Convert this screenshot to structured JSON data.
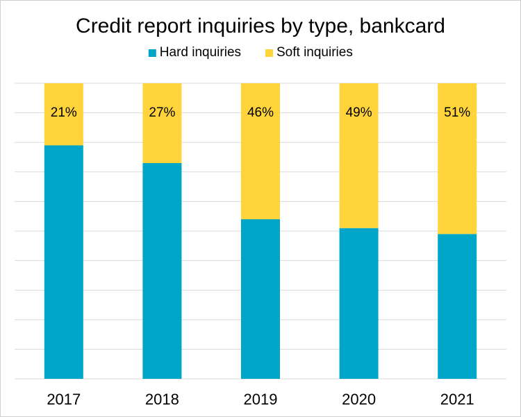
{
  "chart_data": {
    "type": "bar",
    "stacked": true,
    "title": "Credit report inquiries by type, bankcard",
    "xlabel": "",
    "ylabel": "",
    "categories": [
      "2017",
      "2018",
      "2019",
      "2020",
      "2021"
    ],
    "series": [
      {
        "name": "Hard inquiries",
        "color": "#00A6C8",
        "values": [
          79,
          73,
          54,
          51,
          49
        ]
      },
      {
        "name": "Soft inquiries",
        "color": "#FFD43B",
        "values": [
          21,
          27,
          46,
          49,
          51
        ],
        "labels": [
          "21%",
          "27%",
          "46%",
          "49%",
          "51%"
        ]
      }
    ],
    "ylim": [
      0,
      100
    ],
    "y_axis_labels_shown": false,
    "grid": true,
    "legend": "top"
  }
}
